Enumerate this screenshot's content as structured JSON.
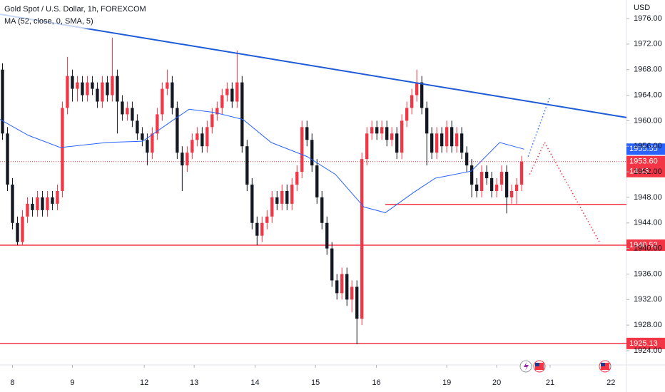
{
  "chart_data": {
    "type": "candlestick",
    "title": "Gold Spot / U.S. Dollar, 1h, FOREXCOM",
    "currency": "USD",
    "up_color": "#f23645",
    "down_color": "#131722",
    "xlim": [
      -0.5,
      125
    ],
    "ylim": [
      1921.77,
      1978.9
    ],
    "yticks": [
      {
        "value": 1924,
        "label": "1924.00"
      },
      {
        "value": 1928,
        "label": "1928.00"
      },
      {
        "value": 1932,
        "label": "1932.00"
      },
      {
        "value": 1936,
        "label": "1936.00"
      },
      {
        "value": 1940,
        "label": "1940.00"
      },
      {
        "value": 1944,
        "label": "1944.00"
      },
      {
        "value": 1948,
        "label": "1948.00"
      },
      {
        "value": 1952,
        "label": "1952.00"
      },
      {
        "value": 1956,
        "label": "1956.00"
      },
      {
        "value": 1960,
        "label": "1960.00"
      },
      {
        "value": 1964,
        "label": "1964.00"
      },
      {
        "value": 1968,
        "label": "1968.00"
      },
      {
        "value": 1972,
        "label": "1972.00"
      },
      {
        "value": 1976,
        "label": "1976.00"
      }
    ],
    "xticks": [
      {
        "value": 2,
        "label": "8"
      },
      {
        "value": 14,
        "label": "9"
      },
      {
        "value": 28.4,
        "label": "12"
      },
      {
        "value": 38.4,
        "label": "13"
      },
      {
        "value": 50.6,
        "label": "14"
      },
      {
        "value": 62.7,
        "label": "15"
      },
      {
        "value": 74.9,
        "label": "16"
      },
      {
        "value": 89,
        "label": "19"
      },
      {
        "value": 99,
        "label": "20"
      },
      {
        "value": 109.7,
        "label": "21"
      },
      {
        "value": 121.9,
        "label": "22"
      }
    ],
    "ohlc": [
      [
        1968,
        1969,
        1957,
        1958
      ],
      [
        1958,
        1959,
        1949,
        1950
      ],
      [
        1950,
        1951,
        1943,
        1944
      ],
      [
        1944,
        1945,
        1940.5,
        1941
      ],
      [
        1941,
        1946,
        1940.5,
        1945
      ],
      [
        1945,
        1948,
        1944,
        1947
      ],
      [
        1947,
        1948,
        1945,
        1946
      ],
      [
        1946,
        1949,
        1945,
        1948
      ],
      [
        1948,
        1949,
        1945,
        1946
      ],
      [
        1946,
        1949,
        1945,
        1948
      ],
      [
        1948,
        1949,
        1946,
        1947
      ],
      [
        1947,
        1950,
        1946,
        1949
      ],
      [
        1949,
        1963,
        1948,
        1962
      ],
      [
        1962,
        1970,
        1961,
        1967
      ],
      [
        1967,
        1968,
        1963,
        1965
      ],
      [
        1965,
        1967,
        1963,
        1966
      ],
      [
        1966,
        1967,
        1963,
        1964
      ],
      [
        1964,
        1967,
        1963,
        1966
      ],
      [
        1966,
        1967,
        1964,
        1965
      ],
      [
        1965,
        1966,
        1962,
        1963
      ],
      [
        1963,
        1967,
        1962,
        1966
      ],
      [
        1966,
        1967,
        1963,
        1964
      ],
      [
        1964,
        1973,
        1963,
        1967
      ],
      [
        1967,
        1968,
        1958,
        1963
      ],
      [
        1963,
        1964,
        1960,
        1961
      ],
      [
        1961,
        1963,
        1960,
        1962
      ],
      [
        1962,
        1963,
        1959,
        1960
      ],
      [
        1960,
        1961,
        1957,
        1958
      ],
      [
        1958,
        1959,
        1956,
        1957
      ],
      [
        1957,
        1958,
        1953,
        1955
      ],
      [
        1955,
        1959,
        1954,
        1958
      ],
      [
        1958,
        1962,
        1957,
        1961
      ],
      [
        1961,
        1966,
        1960,
        1965
      ],
      [
        1965,
        1968,
        1964,
        1966
      ],
      [
        1966,
        1967,
        1961,
        1962
      ],
      [
        1962,
        1963,
        1954,
        1955
      ],
      [
        1955,
        1956,
        1949,
        1953
      ],
      [
        1953,
        1956,
        1952,
        1955
      ],
      [
        1955,
        1958,
        1954,
        1957
      ],
      [
        1957,
        1959,
        1956,
        1958
      ],
      [
        1958,
        1959,
        1955,
        1956
      ],
      [
        1956,
        1960,
        1955,
        1959
      ],
      [
        1959,
        1962,
        1958,
        1961
      ],
      [
        1961,
        1963,
        1960,
        1962
      ],
      [
        1962,
        1965,
        1961,
        1964
      ],
      [
        1964,
        1966,
        1963,
        1965
      ],
      [
        1965,
        1966,
        1962,
        1963
      ],
      [
        1963,
        1971,
        1962,
        1966
      ],
      [
        1966,
        1967,
        1955,
        1956
      ],
      [
        1956,
        1957,
        1949,
        1950
      ],
      [
        1950,
        1951,
        1943,
        1944
      ],
      [
        1944,
        1945,
        1940.5,
        1942
      ],
      [
        1942,
        1945,
        1941,
        1944
      ],
      [
        1944,
        1946,
        1943,
        1945
      ],
      [
        1945,
        1949,
        1944,
        1948
      ],
      [
        1948,
        1949,
        1946,
        1947
      ],
      [
        1947,
        1950,
        1946,
        1949
      ],
      [
        1949,
        1950,
        1946,
        1947
      ],
      [
        1947,
        1951,
        1946,
        1950
      ],
      [
        1950,
        1953,
        1949,
        1952
      ],
      [
        1952,
        1960,
        1951,
        1959
      ],
      [
        1959,
        1960,
        1956,
        1957
      ],
      [
        1957,
        1958,
        1952,
        1953
      ],
      [
        1953,
        1954,
        1947,
        1948
      ],
      [
        1948,
        1949,
        1943,
        1944
      ],
      [
        1944,
        1945,
        1939,
        1940
      ],
      [
        1940,
        1941,
        1934,
        1935
      ],
      [
        1935,
        1936,
        1932,
        1933
      ],
      [
        1933,
        1937,
        1932,
        1936
      ],
      [
        1936,
        1937,
        1931,
        1932
      ],
      [
        1932,
        1935,
        1930,
        1934
      ],
      [
        1934,
        1935,
        1925,
        1929
      ],
      [
        1929,
        1955,
        1928,
        1954
      ],
      [
        1954,
        1959,
        1953,
        1958
      ],
      [
        1958,
        1960,
        1957,
        1959
      ],
      [
        1959,
        1960,
        1957,
        1958
      ],
      [
        1958,
        1960,
        1957,
        1959
      ],
      [
        1959,
        1960,
        1956,
        1957
      ],
      [
        1957,
        1959,
        1956,
        1958
      ],
      [
        1958,
        1959,
        1954,
        1955
      ],
      [
        1955,
        1961,
        1954,
        1960
      ],
      [
        1960,
        1963,
        1959,
        1962
      ],
      [
        1962,
        1965,
        1961,
        1964
      ],
      [
        1964,
        1968,
        1963,
        1966
      ],
      [
        1966,
        1967,
        1961,
        1962
      ],
      [
        1962,
        1963,
        1953,
        1958
      ],
      [
        1958,
        1959,
        1954,
        1955
      ],
      [
        1955,
        1959,
        1954,
        1958
      ],
      [
        1958,
        1959,
        1955,
        1956
      ],
      [
        1956,
        1960,
        1955,
        1959
      ],
      [
        1959,
        1960,
        1955,
        1956
      ],
      [
        1956,
        1959,
        1955,
        1958
      ],
      [
        1958,
        1959,
        1954,
        1955
      ],
      [
        1955,
        1956,
        1952,
        1953
      ],
      [
        1953,
        1954,
        1948,
        1950
      ],
      [
        1950,
        1951,
        1948,
        1949
      ],
      [
        1949,
        1953,
        1948,
        1952
      ],
      [
        1952,
        1953,
        1950,
        1951
      ],
      [
        1951,
        1952,
        1948,
        1949
      ],
      [
        1949,
        1951,
        1948,
        1950
      ],
      [
        1950,
        1953,
        1949,
        1952
      ],
      [
        1952,
        1953,
        1945.5,
        1948
      ],
      [
        1948,
        1950,
        1947,
        1949
      ],
      [
        1949,
        1951,
        1947,
        1950
      ],
      [
        1950,
        1954.5,
        1949,
        1953.6
      ]
    ],
    "ma": {
      "name": "MA (52, close, 0, SMA, 5)",
      "color": "#2962ff",
      "x": [
        -0.5,
        5.2,
        11.6,
        20.9,
        28.1,
        33.8,
        37.4,
        42.4,
        48.2,
        53.8,
        61,
        66.7,
        72.4,
        76.7,
        82.4,
        86.7,
        93.9,
        99.6,
        104.5
      ],
      "values": [
        1960.2,
        1957.7,
        1955.8,
        1956.6,
        1956.8,
        1959.9,
        1961.8,
        1961.3,
        1960.2,
        1956.6,
        1954.4,
        1951.6,
        1946.5,
        1945.6,
        1948.8,
        1951,
        1952.1,
        1956.6,
        1955.55
      ]
    },
    "levels": [
      {
        "value": 1953.6,
        "label": "1953.60",
        "countdown": "14:43",
        "from": -0.5,
        "color": "#f23645",
        "dash": "dotted"
      },
      {
        "value": 1946.9,
        "from": 76.7,
        "color": "#f23645"
      },
      {
        "value": 1940.52,
        "from": -0.5,
        "color": "#f23645",
        "badge": true
      },
      {
        "value": 1925.13,
        "from": -0.5,
        "color": "#f23645",
        "badge": true
      }
    ],
    "drawings": [
      {
        "color": "#1e5bd7",
        "x": [
          -0.5,
          125
        ],
        "values": [
          1976.67,
          1960.5
        ]
      },
      {
        "color": "#2962ff",
        "dash": "dotted",
        "x": [
          105.3,
          109.6
        ],
        "values": [
          1954.4,
          1963.6
        ]
      },
      {
        "color": "#f23645",
        "dash": "dotted",
        "x": [
          105.6,
          108.6,
          119.6
        ],
        "values": [
          1951.6,
          1956.6,
          1941
        ]
      }
    ]
  }
}
